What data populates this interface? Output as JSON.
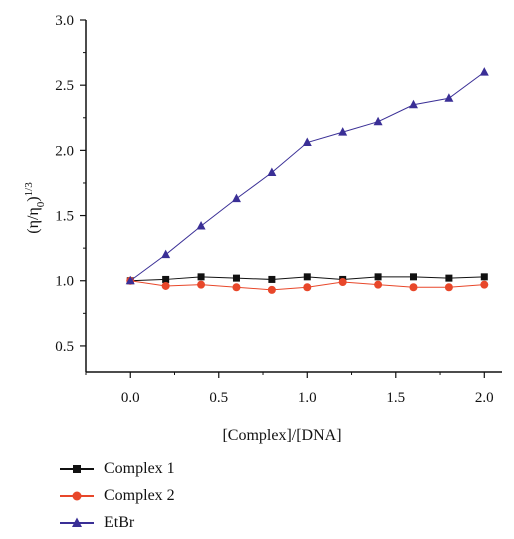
{
  "chart_data": {
    "type": "line",
    "xlabel": "[Complex]/[DNA]",
    "ylabel_main": "(η/η",
    "ylabel_sub": "0",
    "ylabel_close": ")",
    "ylabel_sup": "1/3",
    "xlim": [
      -0.25,
      2.1
    ],
    "ylim": [
      0.3,
      3.0
    ],
    "xticks": [
      "0.0",
      "0.5",
      "1.0",
      "1.5",
      "2.0"
    ],
    "yticks": [
      "0.5",
      "1.0",
      "1.5",
      "2.0",
      "2.5",
      "3.0"
    ],
    "x": [
      0.0,
      0.2,
      0.4,
      0.6,
      0.8,
      1.0,
      1.2,
      1.4,
      1.6,
      1.8,
      2.0
    ],
    "series": [
      {
        "name": "Complex 1",
        "color": "#111111",
        "marker": "square",
        "values": [
          1.0,
          1.01,
          1.03,
          1.02,
          1.01,
          1.03,
          1.01,
          1.03,
          1.03,
          1.02,
          1.03
        ]
      },
      {
        "name": "Complex 2",
        "color": "#e8472a",
        "marker": "circle",
        "values": [
          1.0,
          0.96,
          0.97,
          0.95,
          0.93,
          0.95,
          0.99,
          0.97,
          0.95,
          0.95,
          0.97
        ]
      },
      {
        "name": "EtBr",
        "color": "#3a2f96",
        "marker": "triangle",
        "values": [
          1.0,
          1.2,
          1.42,
          1.63,
          1.83,
          2.06,
          2.14,
          2.22,
          2.35,
          2.4,
          2.6
        ]
      }
    ],
    "grid": false,
    "legend_position": "bottom-left"
  }
}
